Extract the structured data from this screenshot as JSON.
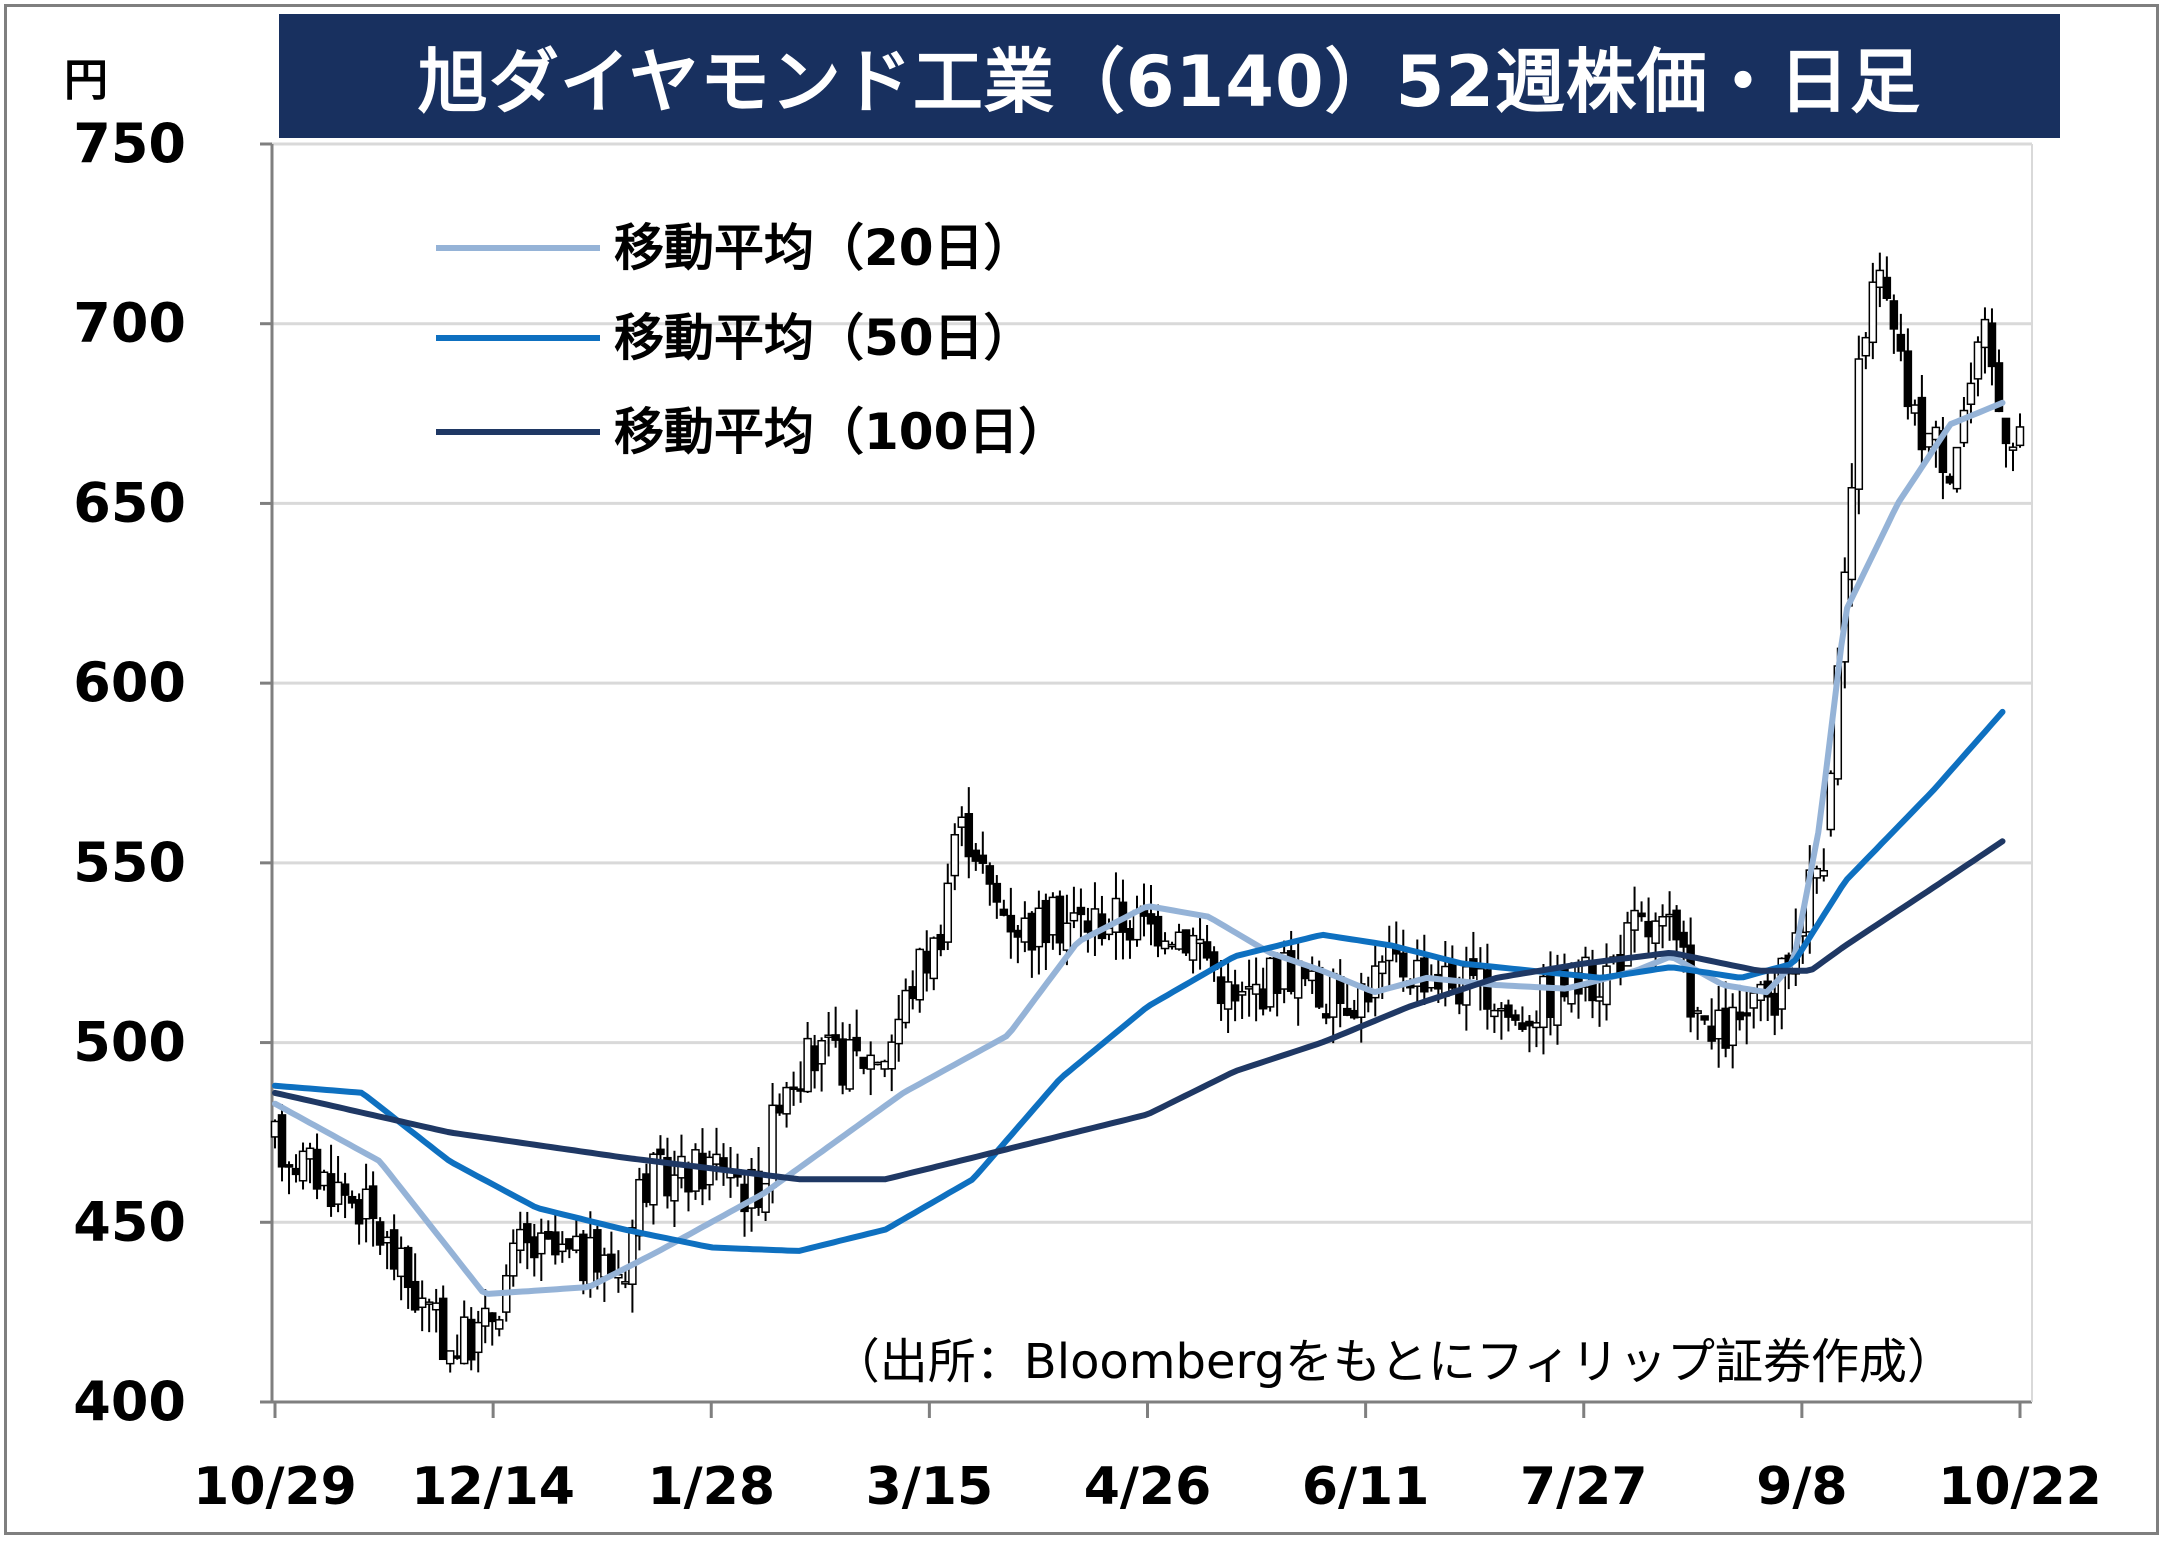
{
  "title": "旭ダイヤモンド工業（6140）52週株価・日足",
  "unit": "円",
  "source_note": "（出所：Bloombergをもとにフィリップ証券作成）",
  "colors": {
    "title_bg": "#18305f",
    "ma20": "#95b3d7",
    "ma50": "#0e70c0",
    "ma100": "#1f3864",
    "candle": "#000000",
    "grid": "#d9d9d9"
  },
  "chart_data": {
    "type": "candlestick",
    "ylim": [
      400,
      750
    ],
    "yticks": [
      400,
      450,
      500,
      550,
      600,
      650,
      700,
      750
    ],
    "xtick_labels": [
      "10/29",
      "12/14",
      "1/28",
      "3/15",
      "4/26",
      "6/11",
      "7/27",
      "9/8",
      "10/22"
    ],
    "legend_position": "top-left",
    "grid": true,
    "series": [
      {
        "name": "移動平均（20日）",
        "anchors": [
          [
            0,
            483
          ],
          [
            0.06,
            467
          ],
          [
            0.12,
            430
          ],
          [
            0.18,
            432
          ],
          [
            0.22,
            442
          ],
          [
            0.28,
            458
          ],
          [
            0.36,
            486
          ],
          [
            0.42,
            502
          ],
          [
            0.46,
            528
          ],
          [
            0.5,
            538
          ],
          [
            0.535,
            535
          ],
          [
            0.57,
            525
          ],
          [
            0.6,
            520
          ],
          [
            0.63,
            514
          ],
          [
            0.66,
            518
          ],
          [
            0.7,
            516
          ],
          [
            0.74,
            515
          ],
          [
            0.78,
            520
          ],
          [
            0.8,
            524
          ],
          [
            0.83,
            516
          ],
          [
            0.855,
            514
          ],
          [
            0.87,
            522
          ],
          [
            0.885,
            560
          ],
          [
            0.9,
            620
          ],
          [
            0.93,
            650
          ],
          [
            0.96,
            672
          ],
          [
            0.99,
            678
          ]
        ]
      },
      {
        "name": "移動平均（50日）",
        "anchors": [
          [
            0,
            488
          ],
          [
            0.05,
            486
          ],
          [
            0.1,
            467
          ],
          [
            0.15,
            454
          ],
          [
            0.2,
            448
          ],
          [
            0.25,
            443
          ],
          [
            0.3,
            442
          ],
          [
            0.35,
            448
          ],
          [
            0.4,
            462
          ],
          [
            0.45,
            490
          ],
          [
            0.5,
            510
          ],
          [
            0.55,
            524
          ],
          [
            0.6,
            530
          ],
          [
            0.64,
            527
          ],
          [
            0.68,
            522
          ],
          [
            0.72,
            520
          ],
          [
            0.76,
            518
          ],
          [
            0.8,
            521
          ],
          [
            0.84,
            518
          ],
          [
            0.87,
            522
          ],
          [
            0.9,
            545
          ],
          [
            0.95,
            570
          ],
          [
            0.99,
            592
          ]
        ]
      },
      {
        "name": "移動平均（100日）",
        "anchors": [
          [
            0,
            486
          ],
          [
            0.1,
            475
          ],
          [
            0.2,
            468
          ],
          [
            0.3,
            462
          ],
          [
            0.35,
            462
          ],
          [
            0.4,
            468
          ],
          [
            0.5,
            480
          ],
          [
            0.55,
            492
          ],
          [
            0.6,
            500
          ],
          [
            0.65,
            510
          ],
          [
            0.7,
            518
          ],
          [
            0.75,
            522
          ],
          [
            0.8,
            525
          ],
          [
            0.85,
            520
          ],
          [
            0.88,
            520
          ],
          [
            0.9,
            527
          ],
          [
            0.95,
            543
          ],
          [
            0.99,
            556
          ]
        ]
      }
    ],
    "price_path": [
      [
        0,
        472
      ],
      [
        0.05,
        455
      ],
      [
        0.08,
        430
      ],
      [
        0.1,
        415
      ],
      [
        0.12,
        420
      ],
      [
        0.14,
        443
      ],
      [
        0.17,
        440
      ],
      [
        0.2,
        437
      ],
      [
        0.21,
        462
      ],
      [
        0.23,
        462
      ],
      [
        0.26,
        468
      ],
      [
        0.27,
        458
      ],
      [
        0.28,
        462
      ],
      [
        0.29,
        490
      ],
      [
        0.31,
        496
      ],
      [
        0.33,
        495
      ],
      [
        0.35,
        498
      ],
      [
        0.37,
        522
      ],
      [
        0.38,
        528
      ],
      [
        0.39,
        560
      ],
      [
        0.4,
        558
      ],
      [
        0.41,
        540
      ],
      [
        0.43,
        532
      ],
      [
        0.45,
        534
      ],
      [
        0.47,
        534
      ],
      [
        0.48,
        535
      ],
      [
        0.5,
        532
      ],
      [
        0.51,
        534
      ],
      [
        0.53,
        528
      ],
      [
        0.55,
        510
      ],
      [
        0.56,
        514
      ],
      [
        0.58,
        522
      ],
      [
        0.6,
        512
      ],
      [
        0.62,
        514
      ],
      [
        0.64,
        522
      ],
      [
        0.66,
        520
      ],
      [
        0.68,
        516
      ],
      [
        0.7,
        512
      ],
      [
        0.71,
        506
      ],
      [
        0.72,
        510
      ],
      [
        0.74,
        516
      ],
      [
        0.76,
        518
      ],
      [
        0.77,
        525
      ],
      [
        0.78,
        532
      ],
      [
        0.8,
        530
      ],
      [
        0.81,
        516
      ],
      [
        0.82,
        500
      ],
      [
        0.84,
        506
      ],
      [
        0.86,
        512
      ],
      [
        0.87,
        528
      ],
      [
        0.88,
        545
      ],
      [
        0.89,
        558
      ],
      [
        0.9,
        630
      ],
      [
        0.91,
        700
      ],
      [
        0.92,
        712
      ],
      [
        0.93,
        690
      ],
      [
        0.94,
        672
      ],
      [
        0.95,
        668
      ],
      [
        0.96,
        662
      ],
      [
        0.97,
        680
      ],
      [
        0.98,
        695
      ],
      [
        0.99,
        672
      ]
    ],
    "volatility": 9,
    "candle_count": 250
  }
}
